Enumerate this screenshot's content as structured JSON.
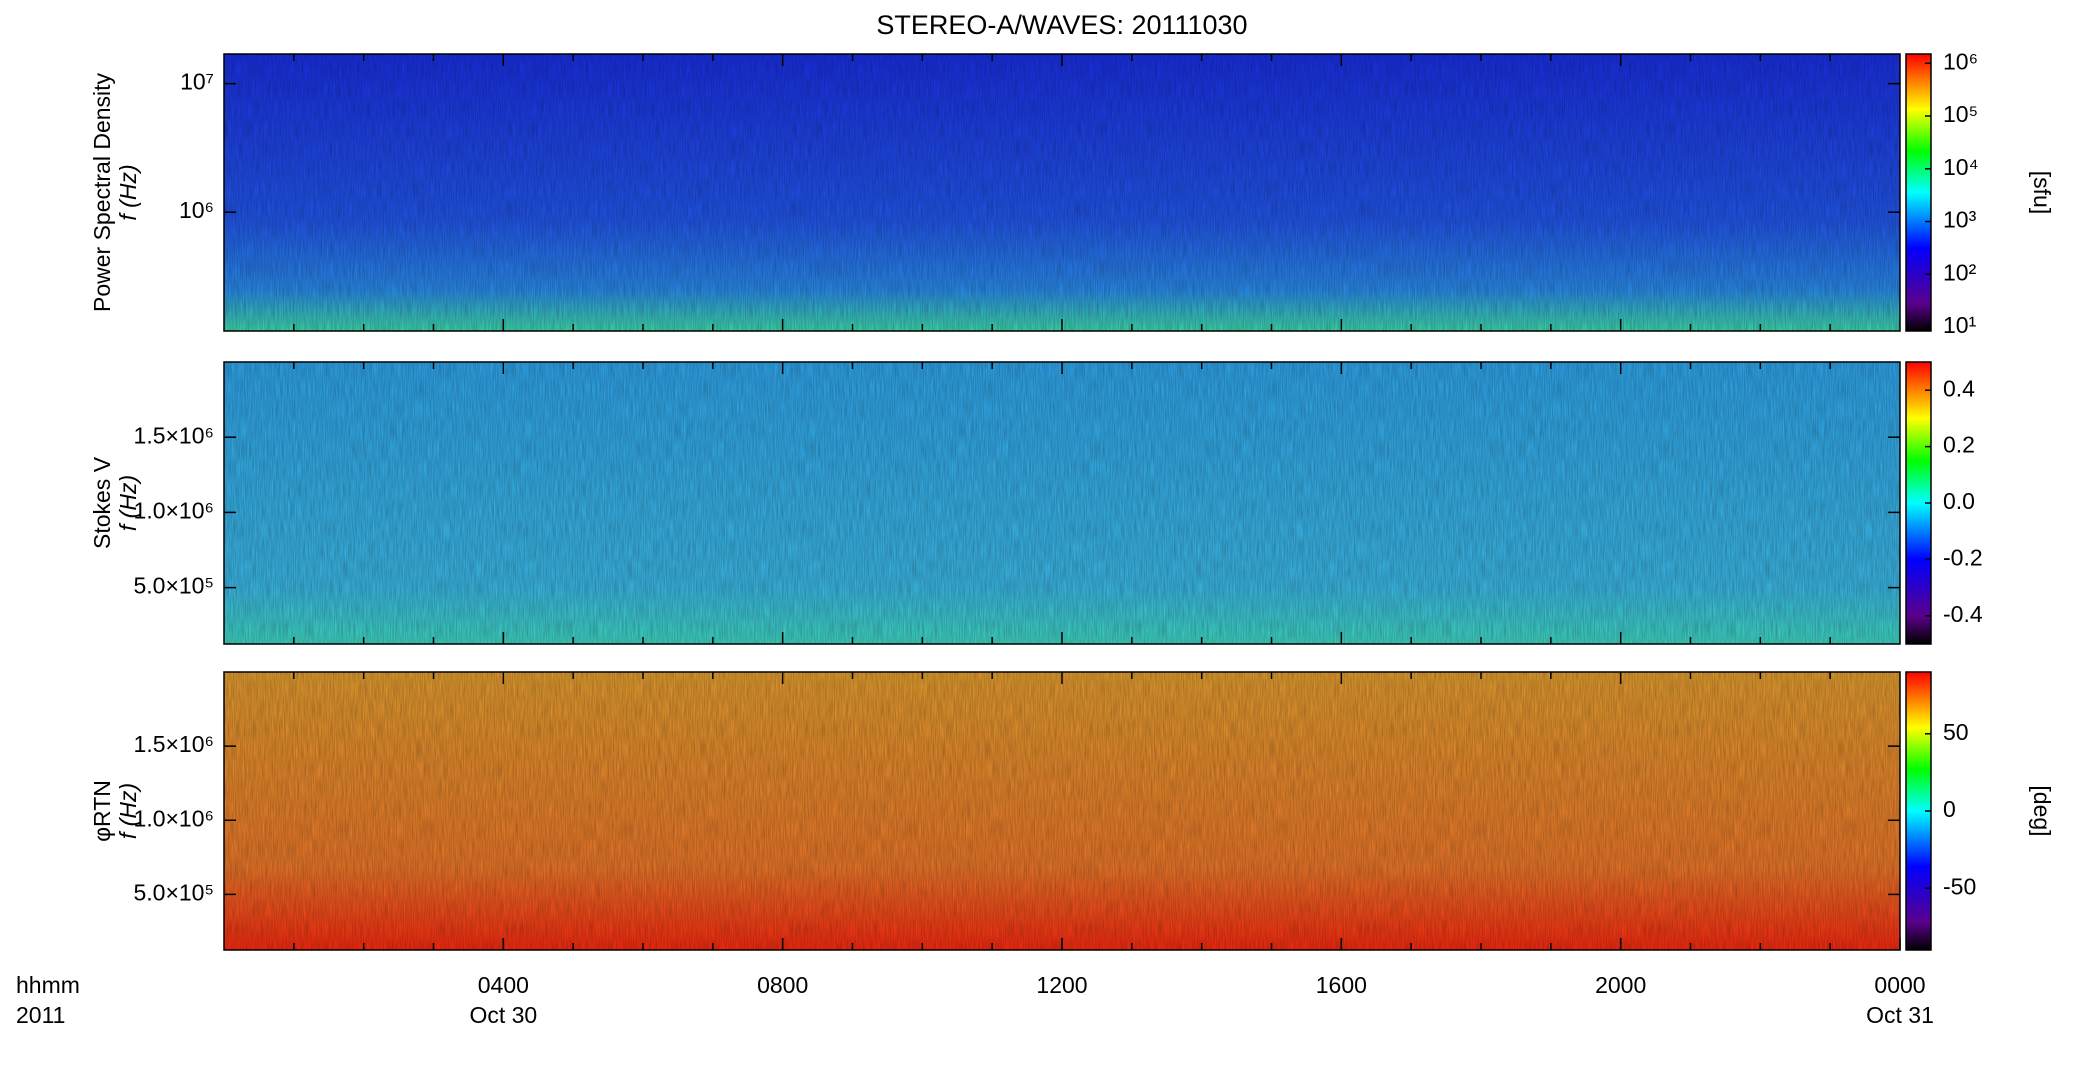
{
  "chart_data": {
    "type": "spectrogram",
    "title": "STEREO-A/WAVES: 20111030",
    "xlim": [
      0,
      24
    ],
    "xticks": [
      {
        "value": 4,
        "label": "0400"
      },
      {
        "value": 8,
        "label": "0800"
      },
      {
        "value": 12,
        "label": "1200"
      },
      {
        "value": 16,
        "label": "1600"
      },
      {
        "value": 20,
        "label": "2000"
      },
      {
        "value": 24,
        "label": "0000"
      }
    ],
    "date_labels": [
      {
        "value": 4,
        "label": "Oct 30"
      },
      {
        "value": 24,
        "label": "Oct 31"
      }
    ],
    "time_labels": [
      "hhmm",
      "2011"
    ],
    "panels": [
      {
        "ylabel": "Power Spectral Density",
        "ylabel2": "f (Hz)",
        "log": true,
        "ylim": [
          119000,
          17000000
        ],
        "yticks": [
          {
            "value": 1000000,
            "label": "10⁶"
          },
          {
            "value": 10000000,
            "label": "10⁷"
          }
        ],
        "clim": [
          8.4,
          1500000
        ],
        "clog": true,
        "zlabel": "[sfu]",
        "cticks": [
          {
            "value": 10,
            "label": "10¹"
          },
          {
            "value": 100,
            "label": "10²"
          },
          {
            "value": 1000,
            "label": "10³"
          },
          {
            "value": 10000,
            "label": "10⁴"
          },
          {
            "value": 100000,
            "label": "10⁵"
          },
          {
            "value": 1000000,
            "label": "10⁶"
          }
        ],
        "color": "#1f40f0"
      },
      {
        "ylabel": "Stokes V",
        "ylabel2": "f (Hz)",
        "log": false,
        "ylim": [
          125000,
          2000000
        ],
        "yticks": [
          {
            "value": 500000,
            "label": "5.0×10⁵"
          },
          {
            "value": 1000000,
            "label": "1.0×10⁶"
          },
          {
            "value": 1500000,
            "label": "1.5×10⁶"
          }
        ],
        "clim": [
          -0.5,
          0.5
        ],
        "clog": false,
        "cticks": [
          -0.4,
          -0.2,
          {
            "value": 0,
            "label": "0.0"
          },
          0.2,
          0.4
        ],
        "color": "#38b4ec"
      },
      {
        "ylabel": "φRTN",
        "ylabel2": "f (Hz)",
        "log": false,
        "ylim": [
          125000,
          2000000
        ],
        "yticks": [
          {
            "value": 500000,
            "label": "5.0×10⁵"
          },
          {
            "value": 1000000,
            "label": "1.0×10⁶"
          },
          {
            "value": 1500000,
            "label": "1.5×10⁶"
          }
        ],
        "clim": [
          -90,
          90
        ],
        "clog": false,
        "zlabel": "[deg]",
        "cticks": [
          -50,
          0,
          50
        ],
        "color": "#f07a2a"
      }
    ]
  }
}
